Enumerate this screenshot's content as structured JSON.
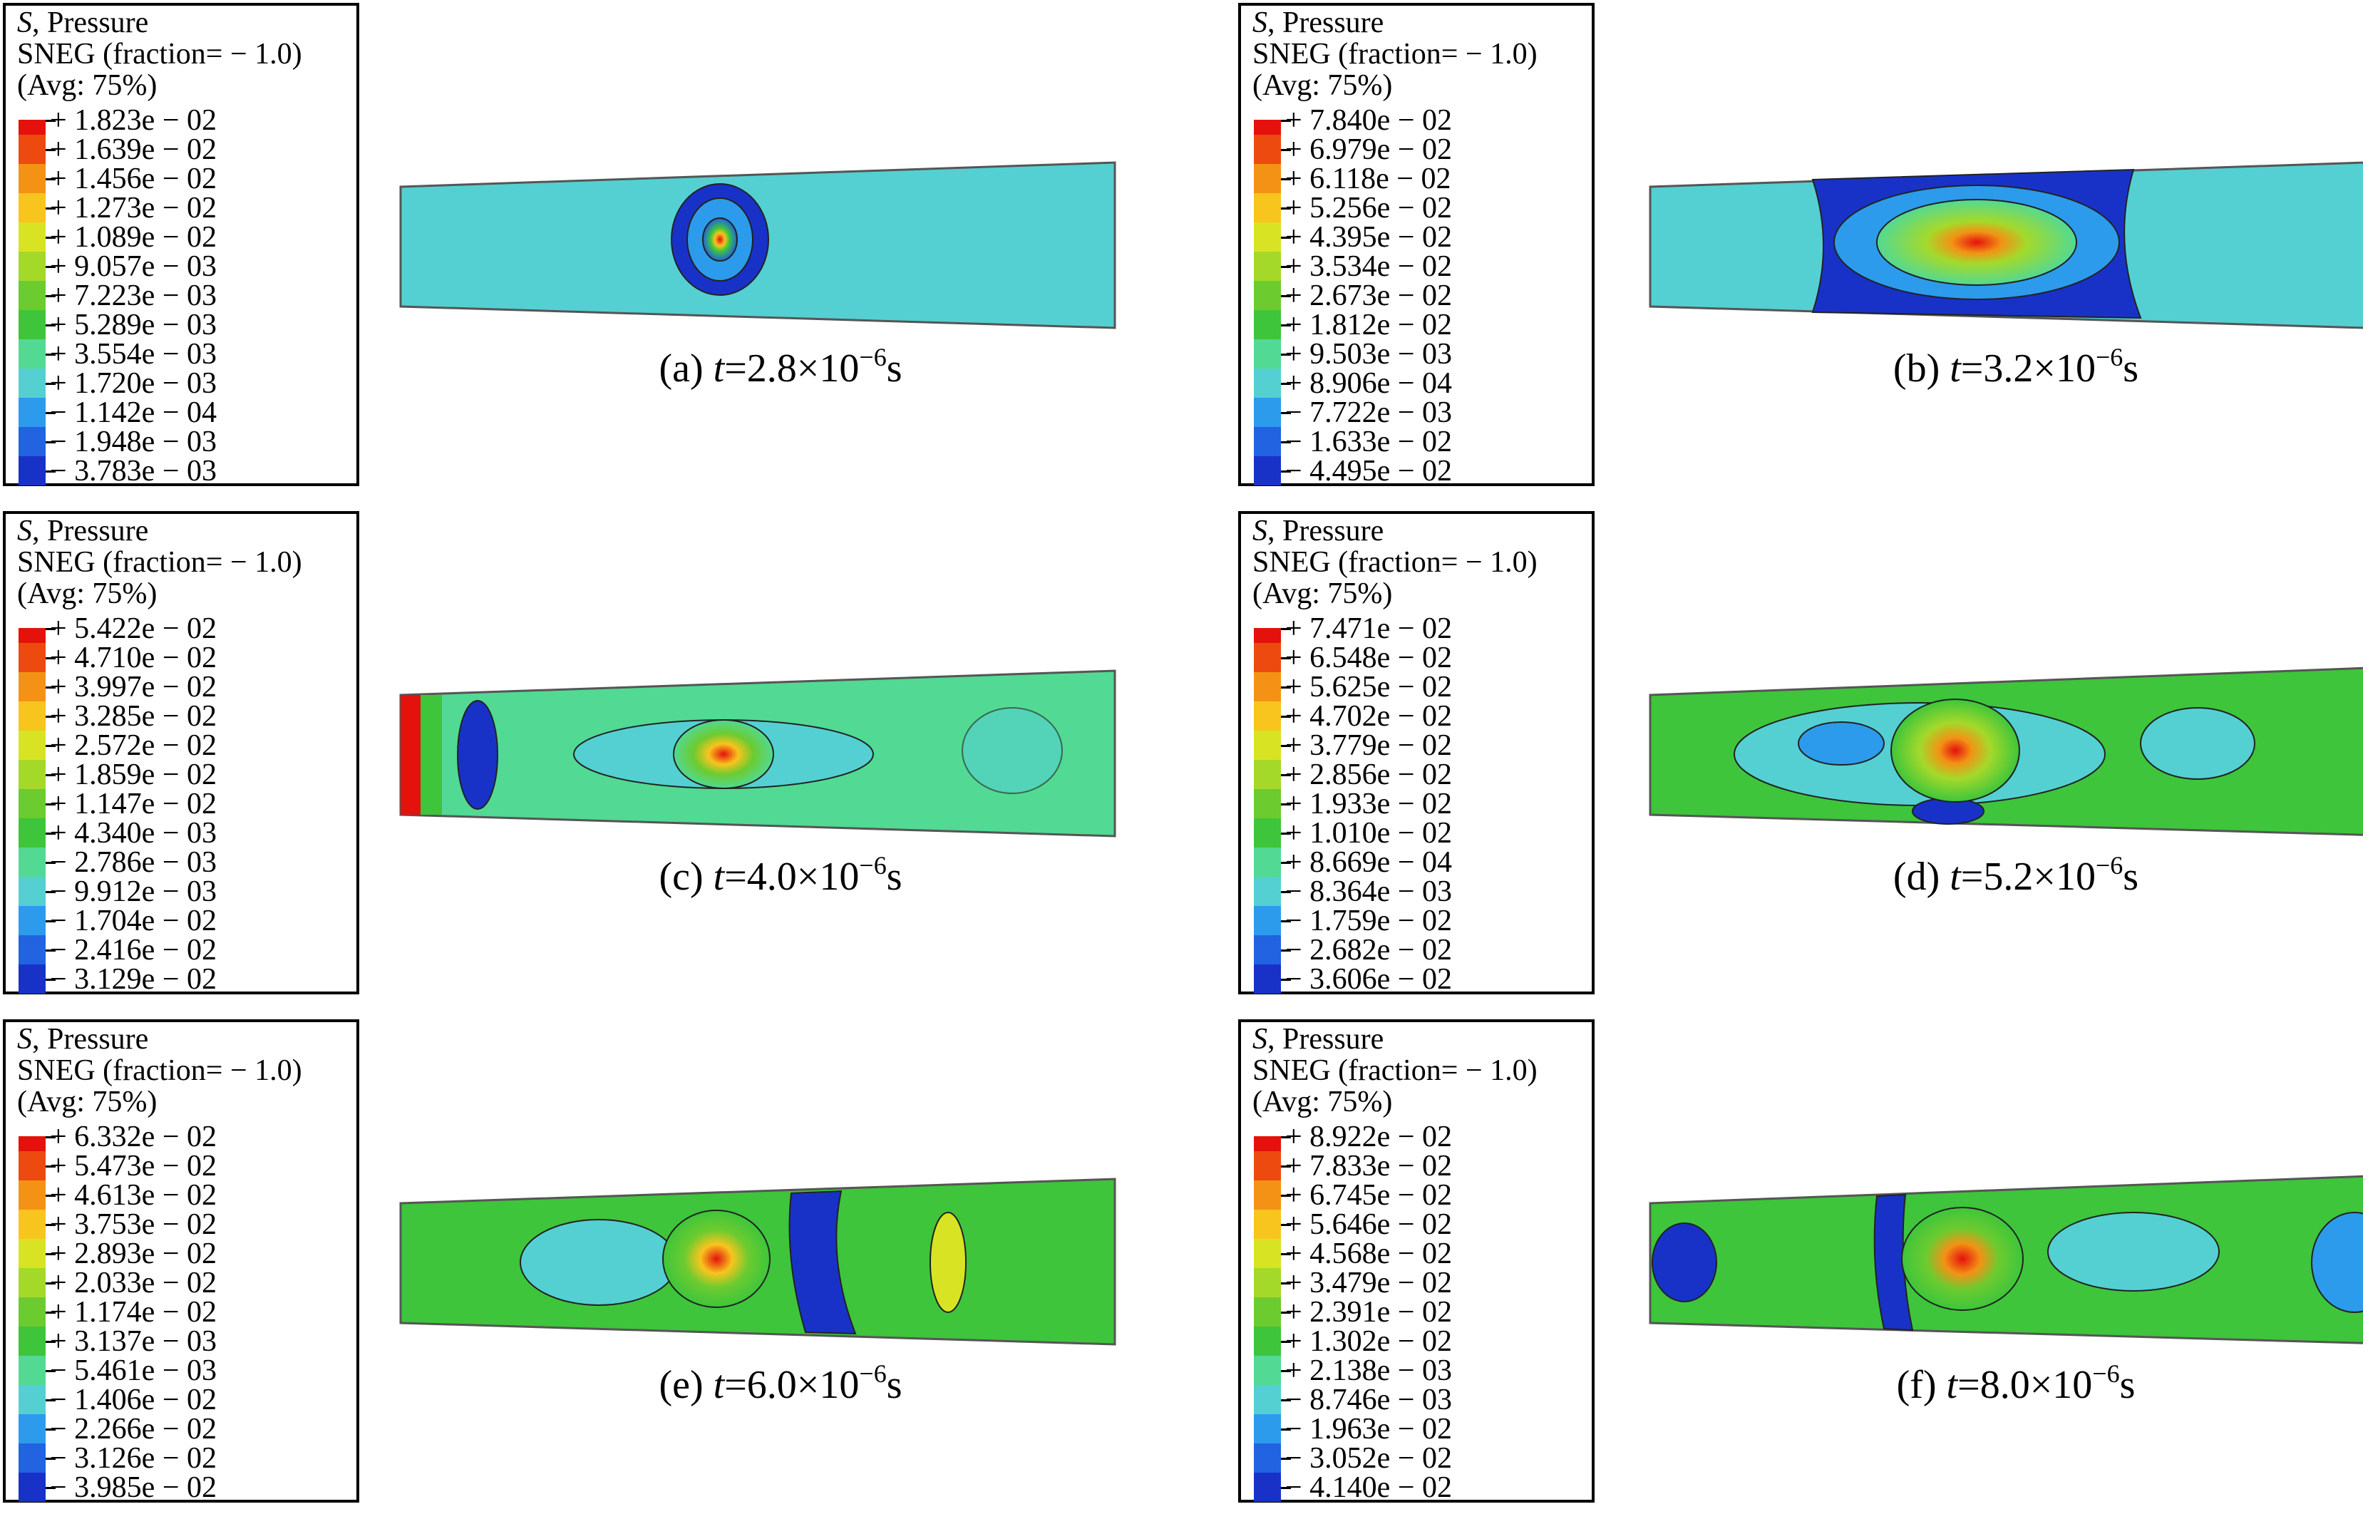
{
  "colors": [
    "#e4110d",
    "#ed4a10",
    "#f39215",
    "#f8c41e",
    "#d8e423",
    "#a4d92a",
    "#6ccb2f",
    "#3ec53b",
    "#52d993",
    "#54d0d2",
    "#2c9bec",
    "#2163e1",
    "#1832c8"
  ],
  "legend_header": {
    "line1_italic": "S",
    "line1_rest": ", Pressure",
    "line2": "SNEG (fraction= − 1.0)",
    "line3": "(Avg: 75%)"
  },
  "panels": [
    {
      "id": "a",
      "caption": {
        "prefix": "(a) ",
        "var": "t",
        "rest": "=2.8×10",
        "exp": "−6",
        "unit": "s"
      },
      "values": [
        "+ 1.823e − 02",
        "+ 1.639e − 02",
        "+ 1.456e − 02",
        "+ 1.273e − 02",
        "+ 1.089e − 02",
        "+ 9.057e − 03",
        "+ 7.223e − 03",
        "+ 5.289e − 03",
        "+ 3.554e − 03",
        "+ 1.720e − 03",
        "− 1.142e − 04",
        "− 1.948e − 03",
        "− 3.783e − 03"
      ]
    },
    {
      "id": "b",
      "caption": {
        "prefix": "(b) ",
        "var": "t",
        "rest": "=3.2×10",
        "exp": "−6",
        "unit": "s"
      },
      "values": [
        "+ 7.840e − 02",
        "+ 6.979e − 02",
        "+ 6.118e − 02",
        "+ 5.256e − 02",
        "+ 4.395e − 02",
        "+ 3.534e − 02",
        "+ 2.673e − 02",
        "+ 1.812e − 02",
        "+ 9.503e − 03",
        "+ 8.906e − 04",
        "− 7.722e − 03",
        "− 1.633e − 02",
        "− 4.495e − 02"
      ]
    },
    {
      "id": "c",
      "caption": {
        "prefix": "(c) ",
        "var": "t",
        "rest": "=4.0×10",
        "exp": "−6",
        "unit": "s"
      },
      "values": [
        "+ 5.422e − 02",
        "+ 4.710e − 02",
        "+ 3.997e − 02",
        "+ 3.285e − 02",
        "+ 2.572e − 02",
        "+ 1.859e − 02",
        "+ 1.147e − 02",
        "+ 4.340e − 03",
        "− 2.786e − 03",
        "− 9.912e − 03",
        "− 1.704e − 02",
        "− 2.416e − 02",
        "− 3.129e − 02"
      ]
    },
    {
      "id": "d",
      "caption": {
        "prefix": "(d) ",
        "var": "t",
        "rest": "=5.2×10",
        "exp": "−6",
        "unit": "s"
      },
      "values": [
        "+ 7.471e − 02",
        "+ 6.548e − 02",
        "+ 5.625e − 02",
        "+ 4.702e − 02",
        "+ 3.779e − 02",
        "+ 2.856e − 02",
        "+ 1.933e − 02",
        "+ 1.010e − 02",
        "+ 8.669e − 04",
        "− 8.364e − 03",
        "− 1.759e − 02",
        "− 2.682e − 02",
        "− 3.606e − 02"
      ]
    },
    {
      "id": "e",
      "caption": {
        "prefix": "(e) ",
        "var": "t",
        "rest": "=6.0×10",
        "exp": "−6",
        "unit": "s"
      },
      "values": [
        "+ 6.332e − 02",
        "+ 5.473e − 02",
        "+ 4.613e − 02",
        "+ 3.753e − 02",
        "+ 2.893e − 02",
        "+ 2.033e − 02",
        "+ 1.174e − 02",
        "+ 3.137e − 03",
        "− 5.461e − 03",
        "− 1.406e − 02",
        "− 2.266e − 02",
        "− 3.126e − 02",
        "− 3.985e − 02"
      ]
    },
    {
      "id": "f",
      "caption": {
        "prefix": "(f) ",
        "var": "t",
        "rest": "=8.0×10",
        "exp": "−6",
        "unit": "s"
      },
      "values": [
        "+ 8.922e − 02",
        "+ 7.833e − 02",
        "+ 6.745e − 02",
        "+ 5.646e − 02",
        "+ 4.568e − 02",
        "+ 3.479e − 02",
        "+ 2.391e − 02",
        "+ 1.302e − 02",
        "+ 2.138e − 03",
        "− 8.746e − 03",
        "− 1.963e − 02",
        "− 3.052e − 02",
        "− 4.140e − 02"
      ]
    }
  ]
}
